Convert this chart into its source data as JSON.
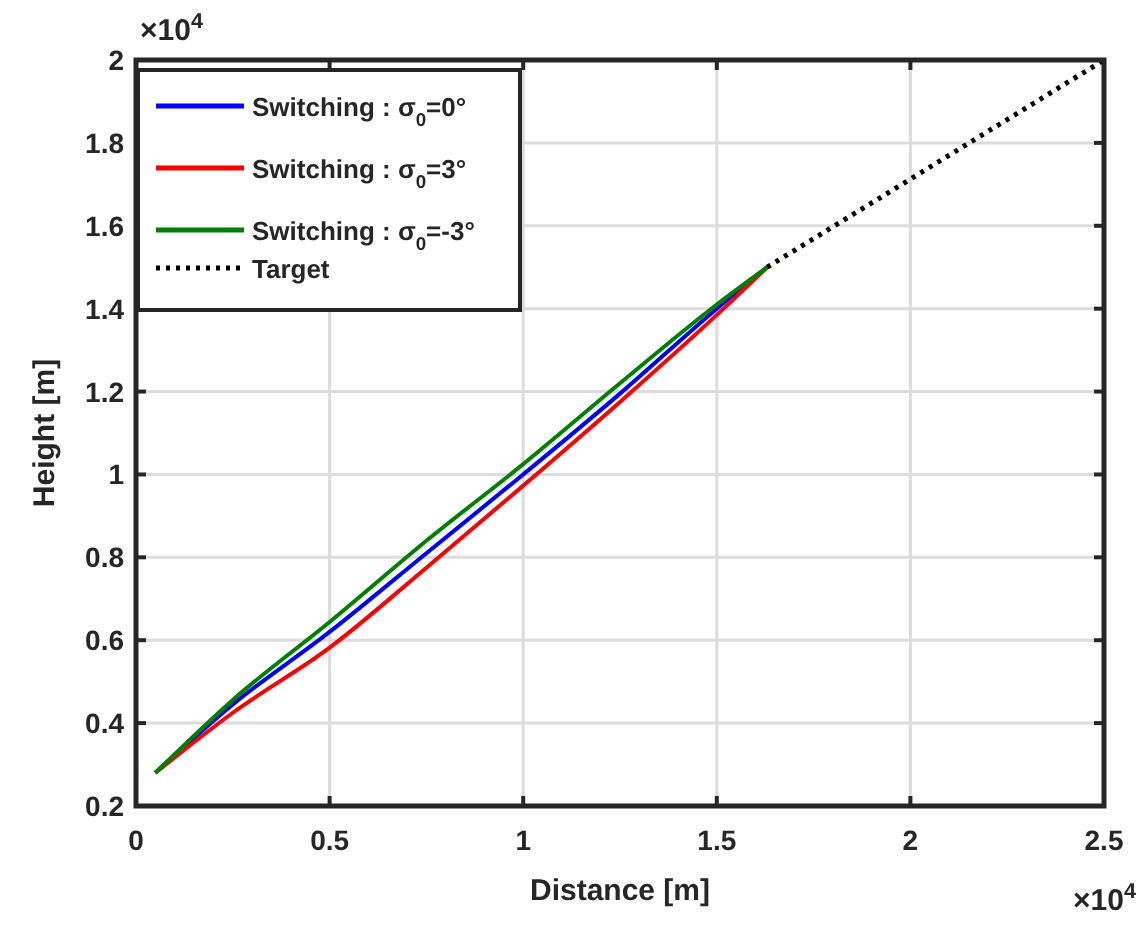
{
  "chart_data": {
    "type": "line",
    "xlabel": "Distance [m]",
    "ylabel": "Height [m]",
    "xlim": [
      0,
      2.5
    ],
    "ylim": [
      0.2,
      2
    ],
    "xticks": [
      0,
      0.5,
      1,
      1.5,
      2,
      2.5
    ],
    "yticks": [
      0.2,
      0.4,
      0.6,
      0.8,
      1,
      1.2,
      1.4,
      1.6,
      1.8,
      2
    ],
    "annotations": [
      "×10$^{4}$",
      "×10$^{4}$"
    ],
    "grid": true,
    "legend": "top left",
    "line_style": "solid",
    "marker": "none",
    "series": [
      {
        "name": "Switching : σ$_{0}$=0°",
        "color": "#0000ff",
        "x": [
          0.05,
          0.25,
          0.5,
          0.75,
          1,
          1.25,
          1.5,
          1.63
        ],
        "values": [
          0.28,
          0.445,
          0.62,
          0.81,
          1,
          1.195,
          1.4,
          1.5
        ]
      },
      {
        "name": "Switching : σ$_{0}$=3°",
        "color": "#ff0000",
        "x": [
          0.05,
          0.25,
          0.5,
          0.75,
          1,
          1.25,
          1.5,
          1.63
        ],
        "values": [
          0.28,
          0.425,
          0.582,
          0.775,
          0.973,
          1.175,
          1.385,
          1.5
        ]
      },
      {
        "name": "Switching : σ$_{0}$=-3°",
        "color": "#008000",
        "x": [
          0.05,
          0.25,
          0.5,
          0.75,
          1,
          1.25,
          1.5,
          1.63
        ],
        "values": [
          0.28,
          0.456,
          0.644,
          0.84,
          1.025,
          1.22,
          1.41,
          1.5
        ]
      },
      {
        "name": "Target",
        "color": "#000000",
        "line_style": "dotted",
        "x": [
          1.63,
          2.5
        ],
        "values": [
          1.5,
          2
        ]
      }
    ]
  }
}
